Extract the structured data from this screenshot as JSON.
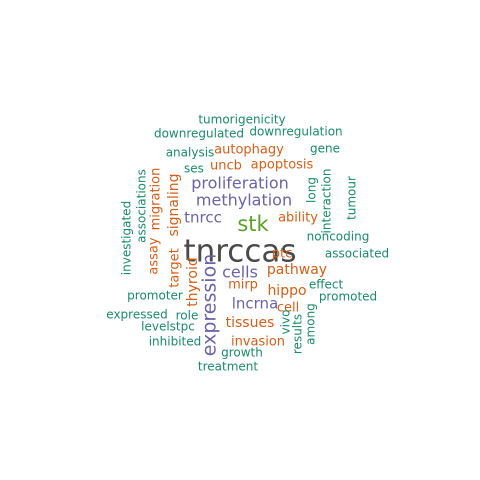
{
  "palette": {
    "gray": "#4a4a4a",
    "green": "#5e9e2a",
    "purple": "#6a64a8",
    "orange": "#d35f1a",
    "teal": "#1b8a6b"
  },
  "words": [
    {
      "text": "tnrccas",
      "color": "gray"
    },
    {
      "text": "stk",
      "color": "green"
    },
    {
      "text": "expression",
      "color": "purple"
    },
    {
      "text": "proliferation",
      "color": "purple"
    },
    {
      "text": "methylation",
      "color": "purple"
    },
    {
      "text": "cells",
      "color": "purple"
    },
    {
      "text": "lncrna",
      "color": "purple"
    },
    {
      "text": "tnrcc",
      "color": "purple"
    },
    {
      "text": "pathway",
      "color": "orange"
    },
    {
      "text": "hippo",
      "color": "orange"
    },
    {
      "text": "tissues",
      "color": "orange"
    },
    {
      "text": "signaling",
      "color": "orange"
    },
    {
      "text": "thyroid",
      "color": "orange"
    },
    {
      "text": "apoptosis",
      "color": "orange"
    },
    {
      "text": "autophagy",
      "color": "orange"
    },
    {
      "text": "uncb",
      "color": "orange"
    },
    {
      "text": "ability",
      "color": "orange"
    },
    {
      "text": "invasion",
      "color": "orange"
    },
    {
      "text": "target",
      "color": "orange"
    },
    {
      "text": "migration",
      "color": "orange"
    },
    {
      "text": "assay",
      "color": "orange"
    },
    {
      "text": "ptc",
      "color": "orange"
    },
    {
      "text": "mirp",
      "color": "orange"
    },
    {
      "text": "cell",
      "color": "orange"
    },
    {
      "text": "tumorigenicity",
      "color": "teal"
    },
    {
      "text": "downregulated",
      "color": "teal"
    },
    {
      "text": "downregulation",
      "color": "teal"
    },
    {
      "text": "analysis",
      "color": "teal"
    },
    {
      "text": "gene",
      "color": "teal"
    },
    {
      "text": "ses",
      "color": "teal"
    },
    {
      "text": "long",
      "color": "teal"
    },
    {
      "text": "interaction",
      "color": "teal"
    },
    {
      "text": "tumour",
      "color": "teal"
    },
    {
      "text": "investigated",
      "color": "teal"
    },
    {
      "text": "associations",
      "color": "teal"
    },
    {
      "text": "noncoding",
      "color": "teal"
    },
    {
      "text": "associated",
      "color": "teal"
    },
    {
      "text": "promoter",
      "color": "teal"
    },
    {
      "text": "effect",
      "color": "teal"
    },
    {
      "text": "promoted",
      "color": "teal"
    },
    {
      "text": "expressed",
      "color": "teal"
    },
    {
      "text": "role",
      "color": "teal"
    },
    {
      "text": "vivo",
      "color": "teal"
    },
    {
      "text": "levelstpc",
      "color": "teal"
    },
    {
      "text": "results",
      "color": "teal"
    },
    {
      "text": "among",
      "color": "teal"
    },
    {
      "text": "inhibited",
      "color": "teal"
    },
    {
      "text": "growth",
      "color": "teal"
    },
    {
      "text": "treatment",
      "color": "teal"
    }
  ]
}
